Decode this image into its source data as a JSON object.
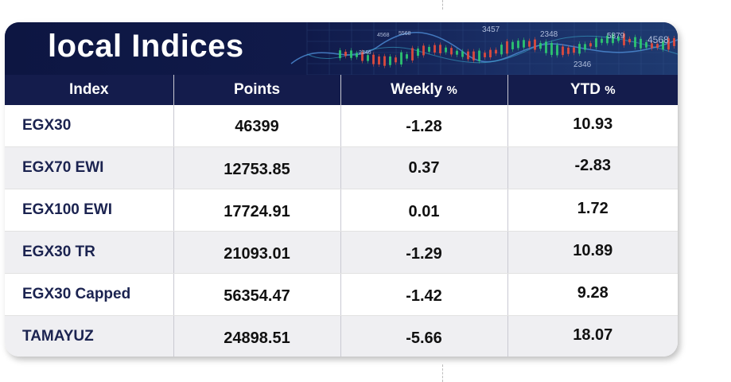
{
  "title": "local Indices",
  "headers": {
    "index": "Index",
    "points": "Points",
    "weekly": "Weekly",
    "weekly_unit": "%",
    "ytd": "YTD",
    "ytd_unit": "%"
  },
  "banner_numbers": [
    "3457",
    "2348",
    "5879",
    "4568",
    "2346",
    "4568",
    "5568",
    "2346"
  ],
  "rows": [
    {
      "index": "EGX30",
      "points": "46399",
      "weekly": "-1.28",
      "ytd": "10.93"
    },
    {
      "index": "EGX70 EWI",
      "points": "12753.85",
      "weekly": "0.37",
      "ytd": "-2.83"
    },
    {
      "index": "EGX100 EWI",
      "points": "17724.91",
      "weekly": "0.01",
      "ytd": "1.72"
    },
    {
      "index": "EGX30 TR",
      "points": "21093.01",
      "weekly": "-1.29",
      "ytd": "10.89"
    },
    {
      "index": "EGX30 Capped",
      "points": "56354.47",
      "weekly": "-1.42",
      "ytd": "9.28"
    },
    {
      "index": "TAMAYUZ",
      "points": "24898.51",
      "weekly": "-5.66",
      "ytd": "18.07"
    }
  ],
  "colors": {
    "banner": "#101a4a",
    "header": "#141c4c",
    "row_alt": "#efeff2",
    "candle_up": "#2ecc71",
    "candle_down": "#e74c3c"
  }
}
